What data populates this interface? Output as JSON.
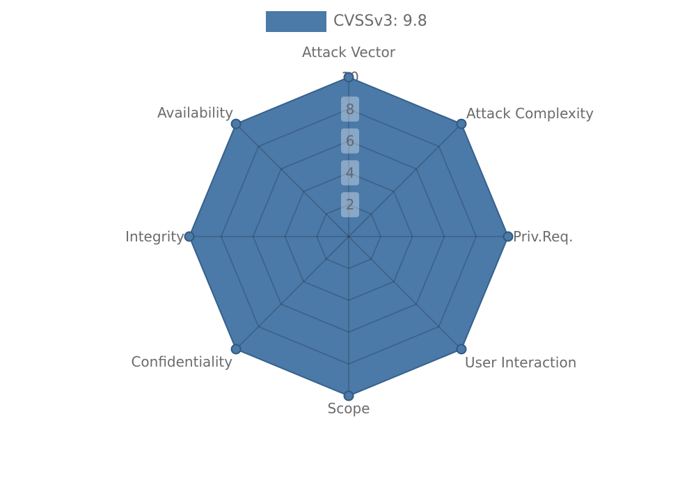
{
  "page": {
    "background": "#ffffff"
  },
  "legend": {
    "label": "CVSSv3: 9.8",
    "swatch_color": "#4b79a8"
  },
  "chart_data": {
    "type": "radar",
    "title": "",
    "categories": [
      "Attack Vector",
      "Attack Complexity",
      "Priv.Req.",
      "User Interaction",
      "Scope",
      "Confidentiality",
      "Integrity",
      "Availability"
    ],
    "series": [
      {
        "name": "CVSSv3: 9.8",
        "values": [
          10,
          10,
          10,
          10,
          10,
          10,
          10,
          10
        ]
      }
    ],
    "radial_ticks": [
      2,
      4,
      6,
      8,
      10
    ],
    "range": [
      0,
      10
    ],
    "grid": true,
    "legend_position": "top-center",
    "colors": {
      "fill": "#4b79a8",
      "stroke": "#35618c",
      "marker_fill": "#4b79a8",
      "marker_edge": "#31597f",
      "grid_line": "rgba(0,0,0,0.2)",
      "axis_label_text": "#6b6b6b",
      "tick_text": "#5e6876",
      "tick_text_outside": "#696969",
      "tick_box": "rgba(255,255,255,0.35)",
      "tick_box_outside": "#ffffff"
    }
  }
}
